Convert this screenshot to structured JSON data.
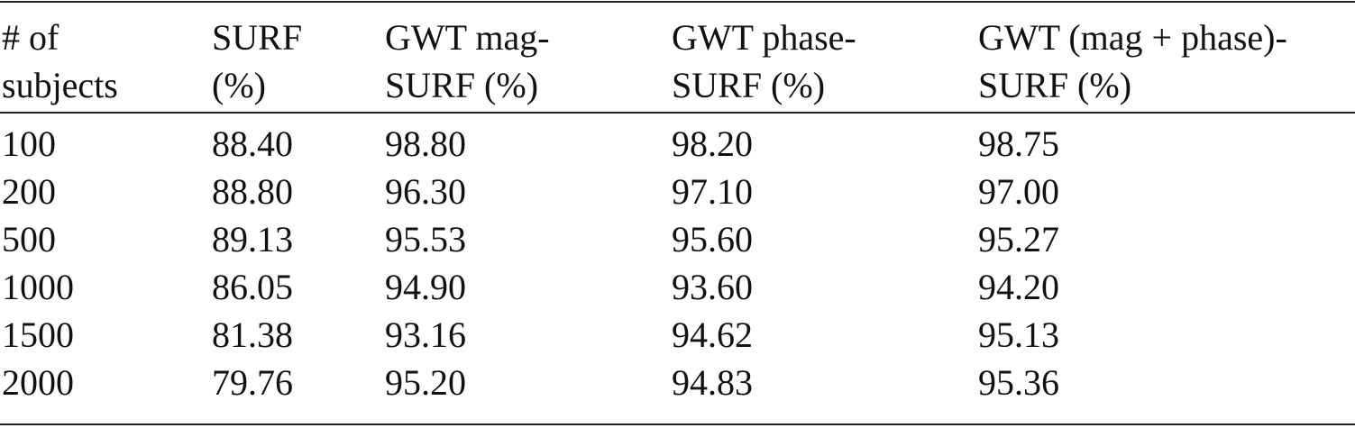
{
  "table": {
    "header": [
      [
        "# of",
        "subjects"
      ],
      [
        "SURF",
        "(%)"
      ],
      [
        "GWT mag-",
        "SURF (%)"
      ],
      [
        "GWT phase-",
        "SURF (%)"
      ],
      [
        "GWT (mag + phase)-",
        "SURF (%)"
      ]
    ],
    "rows": [
      [
        "100",
        "88.40",
        "98.80",
        "98.20",
        "98.75"
      ],
      [
        "200",
        "88.80",
        "96.30",
        "97.10",
        "97.00"
      ],
      [
        "500",
        "89.13",
        "95.53",
        "95.60",
        "95.27"
      ],
      [
        "1000",
        "86.05",
        "94.90",
        "93.60",
        "94.20"
      ],
      [
        "1500",
        "81.38",
        "93.16",
        "94.62",
        "95.13"
      ],
      [
        "2000",
        "79.76",
        "95.20",
        "94.83",
        "95.36"
      ]
    ]
  }
}
